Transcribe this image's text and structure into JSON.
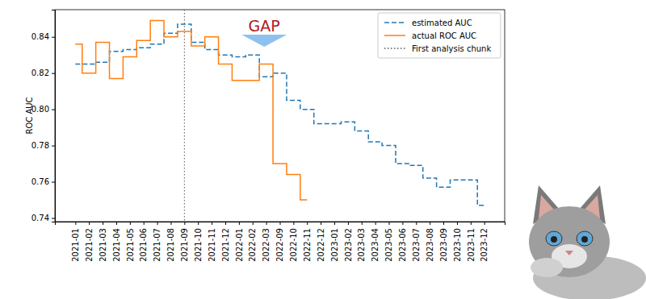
{
  "chart_data": {
    "type": "line",
    "y_label": "ROC AUC",
    "annotation": "GAP",
    "categories": [
      "2021-01",
      "2021-02",
      "2021-03",
      "2021-04",
      "2021-05",
      "2021-06",
      "2021-07",
      "2021-08",
      "2021-09",
      "2021-10",
      "2021-11",
      "2021-12",
      "2022-01",
      "2022-02",
      "2022-03",
      "2022-09",
      "2022-10",
      "2022-11",
      "2022-12",
      "2023-01",
      "2023-02",
      "2023-03",
      "2023-04",
      "2023-05",
      "2023-06",
      "2023-07",
      "2023-08",
      "2023-09",
      "2023-10",
      "2023-11",
      "2023-12"
    ],
    "series": [
      {
        "name": "estimated AUC",
        "color": "#1f77b4",
        "line_style": "dashed",
        "values": [
          0.825,
          0.825,
          0.826,
          0.832,
          0.833,
          0.834,
          0.836,
          0.842,
          0.847,
          0.837,
          0.833,
          0.83,
          0.829,
          0.83,
          0.818,
          0.82,
          0.805,
          0.8,
          0.792,
          0.792,
          0.793,
          0.788,
          0.782,
          0.78,
          0.77,
          0.769,
          0.762,
          0.757,
          0.761,
          0.761,
          0.747
        ]
      },
      {
        "name": "actual ROC AUC",
        "color": "#ff7f0e",
        "line_style": "solid",
        "values": [
          0.836,
          0.82,
          0.837,
          0.817,
          0.829,
          0.838,
          0.849,
          0.84,
          0.843,
          0.835,
          0.84,
          0.825,
          0.816,
          0.816,
          0.825,
          0.77,
          0.764,
          0.75,
          null,
          null,
          null,
          null,
          null,
          null,
          null,
          null,
          null,
          null,
          null,
          null,
          null
        ]
      }
    ],
    "vline": {
      "name": "First analysis chunk",
      "x": "2021-09",
      "color": "#555555",
      "line_style": "dotted"
    },
    "ylim": [
      0.738,
      0.855
    ],
    "yticks": [
      0.74,
      0.76,
      0.78,
      {
        "value": 0.8,
        "label": "0.80"
      },
      0.82,
      0.84
    ],
    "grid": false,
    "legend": "upper right"
  }
}
